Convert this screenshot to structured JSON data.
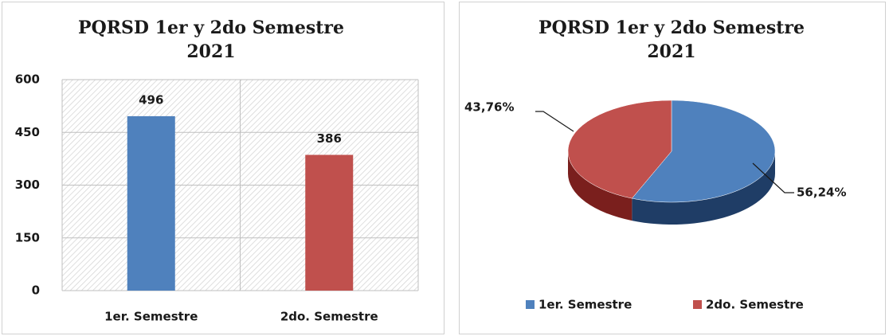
{
  "chart_data": [
    {
      "type": "bar",
      "title": "PQRSD 1er y 2do Semestre 2021",
      "categories": [
        "1er. Semestre",
        "2do. Semestre"
      ],
      "values": [
        496,
        386
      ],
      "colors": [
        "#4f81bd",
        "#c0504d"
      ],
      "ylim": [
        0,
        600
      ],
      "yticks": [
        0,
        150,
        300,
        450,
        600
      ],
      "grid": true
    },
    {
      "type": "pie",
      "title": "PQRSD 1er y 2do Semestre 2021",
      "categories": [
        "1er. Semestre",
        "2do. Semestre"
      ],
      "values": [
        56.24,
        43.76
      ],
      "value_labels": [
        "56,24%",
        "43,76%"
      ],
      "colors": [
        "#4f81bd",
        "#c0504d"
      ],
      "legend": "bottom"
    }
  ]
}
